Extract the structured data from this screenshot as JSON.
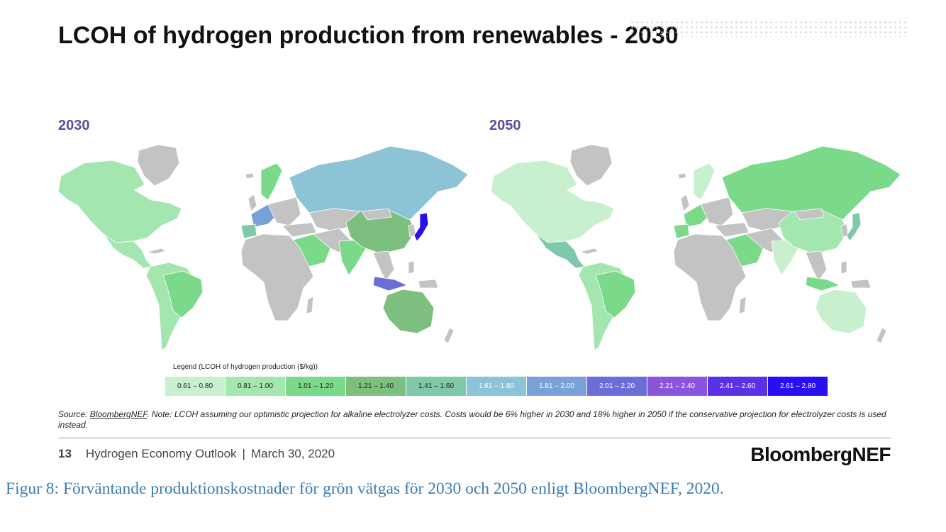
{
  "slide": {
    "title": "LCOH of hydrogen production from renewables - 2030",
    "footer_page": "13",
    "footer_report": "Hydrogen Economy Outlook",
    "footer_separator": "|",
    "footer_date": "March 30, 2020",
    "brand": "BloombergNEF"
  },
  "maps": [
    {
      "year": "2030",
      "regions": {
        "north-america": "0.81 – 1.00",
        "mexico-central-america": "0.81 – 1.00",
        "brazil": "1.01 – 1.20",
        "south-america": "0.81 – 1.00",
        "scandinavia": "1.01 – 1.20",
        "russia": "1.61 – 1.80",
        "iberia": "1.41 – 1.60",
        "western-europe": "1.81 – 2.00",
        "middle-east": "1.01 – 1.20",
        "india": "1.01 – 1.20",
        "china": "1.21 – 1.40",
        "japan": "2.61 – 2.80",
        "indonesia": "2.01 – 2.20",
        "australia": "1.21 – 1.40",
        "africa": "no data"
      }
    },
    {
      "year": "2050",
      "regions": {
        "north-america": "0.61 – 0.80",
        "mexico-central-america": "1.41 – 1.60",
        "brazil": "1.01 – 1.20",
        "south-america": "0.81 – 1.00",
        "scandinavia": "0.61 – 0.80",
        "russia": "1.01 – 1.20",
        "iberia": "1.01 – 1.20",
        "western-europe": "1.01 – 1.20",
        "middle-east": "1.01 – 1.20",
        "india": "0.61 – 0.80",
        "china": "0.81 – 1.00",
        "japan": "1.41 – 1.60",
        "indonesia": "1.01 – 1.20",
        "australia": "0.61 – 0.80",
        "africa": "no data"
      }
    }
  ],
  "legend": {
    "title": "Legend  (LCOH of hydrogen  production  ($/kg))",
    "bins": [
      {
        "label": "0.61  – 0.80",
        "color": "#c8f0cf",
        "text_color": "#222222"
      },
      {
        "label": "0.81  – 1.00",
        "color": "#a3e6b0",
        "text_color": "#222222"
      },
      {
        "label": "1.01  – 1.20",
        "color": "#7bd98a",
        "text_color": "#222222"
      },
      {
        "label": "1.21  – 1.40",
        "color": "#7cbf7e",
        "text_color": "#222222"
      },
      {
        "label": "1.41  – 1.60",
        "color": "#7fc8aa",
        "text_color": "#222222"
      },
      {
        "label": "1.61  – 1.80",
        "color": "#8cc3d6",
        "text_color": "#ffffff"
      },
      {
        "label": "1.81  – 2.00",
        "color": "#7aa0d8",
        "text_color": "#ffffff"
      },
      {
        "label": "2.01  – 2.20",
        "color": "#6a6ed6",
        "text_color": "#ffffff"
      },
      {
        "label": "2.21  – 2.40",
        "color": "#8a55dc",
        "text_color": "#ffffff"
      },
      {
        "label": "2.41  – 2.60",
        "color": "#5a32e6",
        "text_color": "#ffffff"
      },
      {
        "label": "2.61  – 2.80",
        "color": "#2a0ef2",
        "text_color": "#ffffff"
      }
    ],
    "no_data_color": "#c3c3c3"
  },
  "source": {
    "prefix": "Source: ",
    "link": "BloombergNEF",
    "note": ". Note: LCOH assuming our optimistic projection for alkaline electrolyzer costs. Costs would be 6% higher in 2030 and 18% higher in 2050 if the conservative projection for electrolyzer costs is used instead."
  },
  "caption": "Figur 8: Förväntande produktionskostnader för grön vätgas för 2030 och 2050 enligt BloombergNEF, 2020."
}
